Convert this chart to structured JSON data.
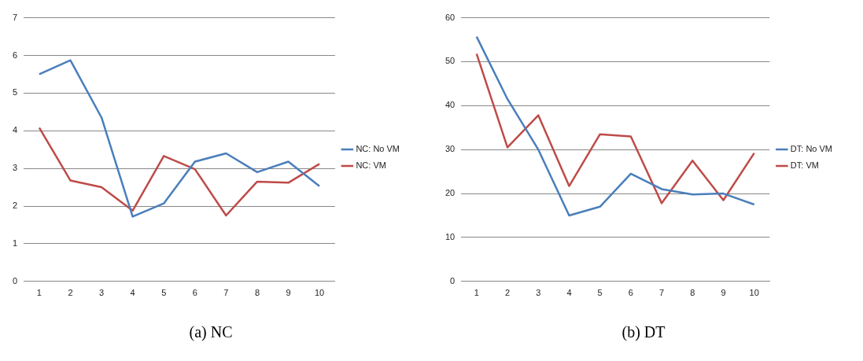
{
  "chart_data": [
    {
      "type": "line",
      "annotations": [
        "(a) NC"
      ],
      "categories": [
        "1",
        "2",
        "3",
        "4",
        "5",
        "6",
        "7",
        "8",
        "9",
        "10"
      ],
      "series": [
        {
          "name": "NC: No VM",
          "color": "#4a7ebb",
          "values": [
            5.5,
            5.87,
            4.35,
            1.72,
            2.07,
            3.18,
            3.4,
            2.9,
            3.18,
            2.53
          ]
        },
        {
          "name": "NC: VM",
          "color": "#be4b48",
          "values": [
            4.08,
            2.68,
            2.5,
            1.88,
            3.33,
            2.98,
            1.75,
            2.65,
            2.62,
            3.12
          ]
        }
      ],
      "ylim": [
        0,
        7
      ],
      "yticks": [
        0,
        1,
        2,
        3,
        4,
        5,
        6,
        7
      ],
      "grid": "y",
      "legend": "right",
      "marker": "none",
      "line_style": "solid"
    },
    {
      "type": "line",
      "annotations": [
        "(b) DT"
      ],
      "categories": [
        "1",
        "2",
        "3",
        "4",
        "5",
        "6",
        "7",
        "8",
        "9",
        "10"
      ],
      "series": [
        {
          "name": "DT: No VM",
          "color": "#4a7ebb",
          "values": [
            55.7,
            41.5,
            30,
            15,
            17,
            24.5,
            21,
            19.8,
            20,
            17.5
          ]
        },
        {
          "name": "DT: VM",
          "color": "#be4b48",
          "values": [
            51.8,
            30.5,
            37.8,
            21.7,
            33.5,
            33,
            17.8,
            27.5,
            18.5,
            29.2
          ]
        }
      ],
      "ylim": [
        0,
        60
      ],
      "yticks": [
        0,
        10,
        20,
        30,
        40,
        50,
        60
      ],
      "grid": "y",
      "legend": "right",
      "marker": "none",
      "line_style": "solid"
    }
  ]
}
